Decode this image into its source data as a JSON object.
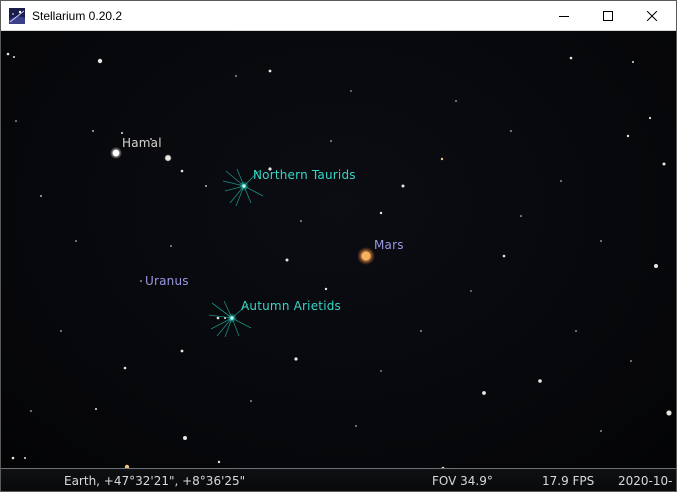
{
  "window": {
    "title": "Stellarium 0.20.2",
    "icon": "stellarium-app-icon",
    "controls": {
      "minimize": "minimize-icon",
      "maximize": "maximize-icon",
      "close": "close-icon"
    }
  },
  "sky_labels": {
    "hamal": "Hamal",
    "northern_taurids": "Northern Taurids",
    "mars": "Mars",
    "uranus": "Uranus",
    "autumn_arietids": "Autumn Arietids"
  },
  "status": {
    "location": "Earth, +47°32'21\", +8°36'25\"",
    "fov": "FOV 34.9°",
    "fps": "17.9 FPS",
    "datetime": "2020-10-"
  },
  "colors": {
    "sky_background": "#06070a",
    "meteor_label": "#37d6c7",
    "planet_label": "#9a98e0",
    "star_label": "#d8d6cf",
    "mars": "#f0a050"
  }
}
